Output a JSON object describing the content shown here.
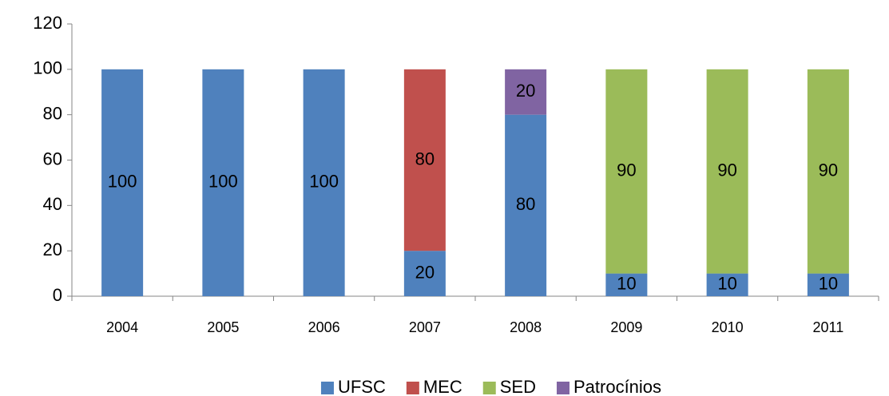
{
  "chart_data": {
    "type": "stacked_bar",
    "categories": [
      "2004",
      "2005",
      "2006",
      "2007",
      "2008",
      "2009",
      "2010",
      "2011"
    ],
    "series": [
      {
        "name": "UFSC",
        "color": "#4f81bd",
        "values": [
          100,
          100,
          100,
          20,
          80,
          10,
          10,
          10
        ]
      },
      {
        "name": "MEC",
        "color": "#c0504d",
        "values": [
          null,
          null,
          null,
          80,
          null,
          null,
          null,
          null
        ]
      },
      {
        "name": "SED",
        "color": "#9bbb59",
        "values": [
          null,
          null,
          null,
          null,
          null,
          90,
          90,
          90
        ]
      },
      {
        "name": "Patrocínios",
        "color": "#8064a2",
        "values": [
          null,
          null,
          null,
          null,
          20,
          null,
          null,
          null
        ]
      }
    ],
    "ylim": [
      0,
      120
    ],
    "yticks": [
      0,
      20,
      40,
      60,
      80,
      100,
      120
    ],
    "grid": false,
    "legend": "bottom"
  }
}
